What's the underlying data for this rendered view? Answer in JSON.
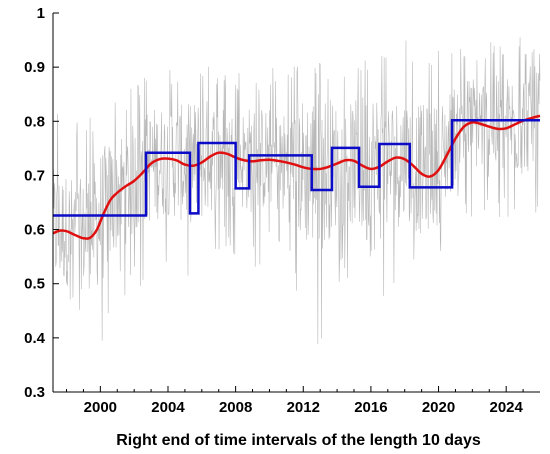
{
  "chart_data": {
    "type": "line",
    "title": "",
    "xlabel": "Right end of time intervals of the length 10 days",
    "ylabel": "",
    "xlim": [
      1997.2,
      2026.0
    ],
    "ylim": [
      0.3,
      1.0
    ],
    "grid": false,
    "legend": "none",
    "x_ticks": [
      2000,
      2004,
      2008,
      2012,
      2016,
      2020,
      2024
    ],
    "y_ticks": [
      0.3,
      0.4,
      0.5,
      0.6,
      0.7,
      0.8,
      0.9,
      1.0
    ],
    "x_tick_labels": [
      "2000",
      "2004",
      "2008",
      "2012",
      "2016",
      "2020",
      "2024"
    ],
    "y_tick_labels": [
      "0.3",
      "0.4",
      "0.5",
      "0.6",
      "0.7",
      "0.8",
      "0.9",
      "1"
    ],
    "series": [
      {
        "kind": "raw",
        "color": "#b8b8b8",
        "width": 0.6,
        "style": "noisy-band",
        "band": [
          [
            1997.2,
            0.6,
            0.43,
            0.84
          ],
          [
            1998.0,
            0.6,
            0.44,
            0.82
          ],
          [
            1999.0,
            0.59,
            0.43,
            0.8
          ],
          [
            2000.0,
            0.62,
            0.36,
            0.83
          ],
          [
            2001.0,
            0.67,
            0.46,
            0.85
          ],
          [
            2002.0,
            0.69,
            0.48,
            0.87
          ],
          [
            2003.0,
            0.72,
            0.5,
            0.89
          ],
          [
            2004.0,
            0.73,
            0.52,
            0.9
          ],
          [
            2005.0,
            0.72,
            0.5,
            0.9
          ],
          [
            2006.0,
            0.73,
            0.48,
            0.91
          ],
          [
            2007.0,
            0.74,
            0.55,
            0.9
          ],
          [
            2008.0,
            0.73,
            0.55,
            0.89
          ],
          [
            2009.0,
            0.73,
            0.52,
            0.89
          ],
          [
            2010.0,
            0.73,
            0.55,
            0.9
          ],
          [
            2011.0,
            0.72,
            0.54,
            0.9
          ],
          [
            2012.0,
            0.71,
            0.4,
            0.91
          ],
          [
            2013.0,
            0.71,
            0.35,
            0.91
          ],
          [
            2014.0,
            0.72,
            0.5,
            0.92
          ],
          [
            2015.0,
            0.72,
            0.5,
            0.92
          ],
          [
            2016.0,
            0.71,
            0.33,
            0.92
          ],
          [
            2017.0,
            0.72,
            0.5,
            0.94
          ],
          [
            2018.0,
            0.73,
            0.5,
            0.95
          ],
          [
            2019.0,
            0.71,
            0.5,
            0.94
          ],
          [
            2020.0,
            0.72,
            0.52,
            0.93
          ],
          [
            2021.0,
            0.78,
            0.6,
            0.94
          ],
          [
            2022.0,
            0.8,
            0.62,
            0.94
          ],
          [
            2023.0,
            0.79,
            0.6,
            0.95
          ],
          [
            2024.0,
            0.79,
            0.62,
            0.96
          ],
          [
            2025.0,
            0.8,
            0.58,
            0.96
          ],
          [
            2026.0,
            0.81,
            0.62,
            0.95
          ]
        ]
      },
      {
        "kind": "smooth",
        "color": "#e01010",
        "width": 2.5,
        "x": [
          1997.2,
          1997.6,
          1998.0,
          1998.5,
          1999.0,
          1999.4,
          1999.8,
          2000.2,
          2000.6,
          2001.0,
          2001.5,
          2002.0,
          2002.5,
          2003.0,
          2003.5,
          2004.0,
          2004.5,
          2005.0,
          2005.5,
          2006.0,
          2006.5,
          2007.0,
          2007.5,
          2008.0,
          2008.5,
          2009.0,
          2009.5,
          2010.0,
          2010.5,
          2011.0,
          2011.5,
          2012.0,
          2012.5,
          2013.0,
          2013.5,
          2014.0,
          2014.5,
          2015.0,
          2015.5,
          2016.0,
          2016.5,
          2017.0,
          2017.5,
          2018.0,
          2018.5,
          2019.0,
          2019.5,
          2020.0,
          2020.5,
          2021.0,
          2021.5,
          2022.0,
          2022.5,
          2023.0,
          2023.5,
          2024.0,
          2024.5,
          2025.0,
          2025.5,
          2026.0
        ],
        "y": [
          0.593,
          0.598,
          0.597,
          0.59,
          0.584,
          0.585,
          0.6,
          0.63,
          0.655,
          0.668,
          0.68,
          0.69,
          0.705,
          0.722,
          0.73,
          0.731,
          0.728,
          0.72,
          0.718,
          0.724,
          0.735,
          0.742,
          0.74,
          0.733,
          0.728,
          0.726,
          0.728,
          0.729,
          0.727,
          0.724,
          0.72,
          0.715,
          0.712,
          0.712,
          0.716,
          0.722,
          0.728,
          0.727,
          0.718,
          0.712,
          0.716,
          0.726,
          0.733,
          0.73,
          0.718,
          0.703,
          0.698,
          0.71,
          0.738,
          0.768,
          0.79,
          0.798,
          0.795,
          0.79,
          0.786,
          0.787,
          0.794,
          0.801,
          0.806,
          0.81
        ]
      },
      {
        "kind": "step",
        "color": "#0b0bc8",
        "width": 2.5,
        "segments": [
          [
            1997.2,
            2002.7,
            0.626
          ],
          [
            2002.7,
            2005.3,
            0.742
          ],
          [
            2005.3,
            2005.8,
            0.63
          ],
          [
            2005.8,
            2008.0,
            0.76
          ],
          [
            2008.0,
            2008.8,
            0.676
          ],
          [
            2008.8,
            2012.5,
            0.737
          ],
          [
            2012.5,
            2013.7,
            0.673
          ],
          [
            2013.7,
            2015.3,
            0.751
          ],
          [
            2015.3,
            2016.5,
            0.679
          ],
          [
            2016.5,
            2018.3,
            0.758
          ],
          [
            2018.3,
            2020.8,
            0.678
          ],
          [
            2020.8,
            2026.0,
            0.802
          ]
        ]
      }
    ]
  }
}
